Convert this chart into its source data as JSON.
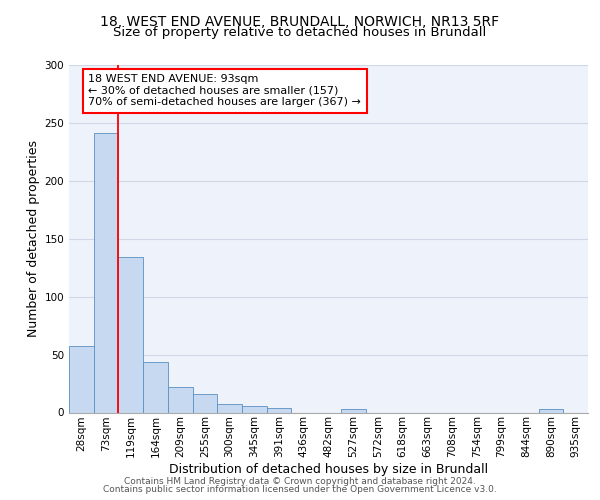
{
  "title_line1": "18, WEST END AVENUE, BRUNDALL, NORWICH, NR13 5RF",
  "title_line2": "Size of property relative to detached houses in Brundall",
  "xlabel": "Distribution of detached houses by size in Brundall",
  "ylabel": "Number of detached properties",
  "footer_line1": "Contains HM Land Registry data © Crown copyright and database right 2024.",
  "footer_line2": "Contains public sector information licensed under the Open Government Licence v3.0.",
  "bin_labels": [
    "28sqm",
    "73sqm",
    "119sqm",
    "164sqm",
    "209sqm",
    "255sqm",
    "300sqm",
    "345sqm",
    "391sqm",
    "436sqm",
    "482sqm",
    "527sqm",
    "572sqm",
    "618sqm",
    "663sqm",
    "708sqm",
    "754sqm",
    "799sqm",
    "844sqm",
    "890sqm",
    "935sqm"
  ],
  "bar_values": [
    57,
    241,
    134,
    44,
    22,
    16,
    7,
    6,
    4,
    0,
    0,
    3,
    0,
    0,
    0,
    0,
    0,
    0,
    0,
    3,
    0
  ],
  "bar_color": "#c6d9f0",
  "bar_edge_color": "#5a8fc2",
  "annotation_box_text": "18 WEST END AVENUE: 93sqm\n← 30% of detached houses are smaller (157)\n70% of semi-detached houses are larger (367) →",
  "red_line_x": 1.5,
  "ylim": [
    0,
    300
  ],
  "yticks": [
    0,
    50,
    100,
    150,
    200,
    250,
    300
  ],
  "background_color": "#eef2fb",
  "grid_color": "#d0d8e8",
  "title_fontsize": 10,
  "subtitle_fontsize": 9.5,
  "axis_label_fontsize": 9,
  "tick_fontsize": 7.5,
  "annotation_fontsize": 8,
  "footer_fontsize": 6.5
}
